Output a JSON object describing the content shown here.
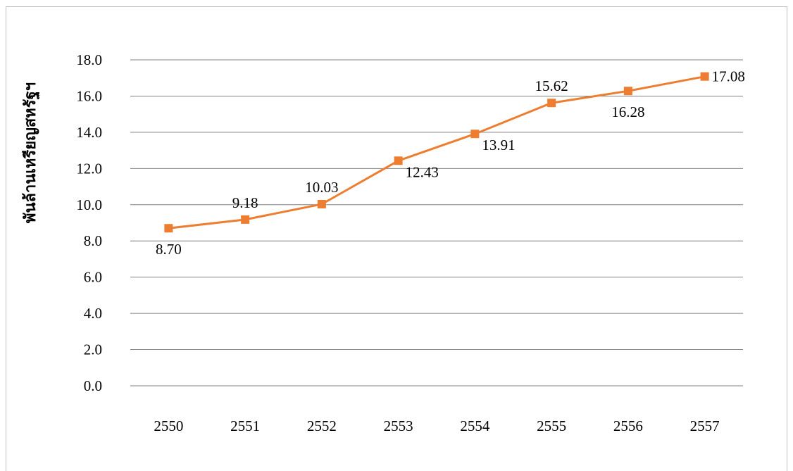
{
  "chart_data": {
    "type": "line",
    "title": "",
    "xlabel": "",
    "ylabel": "พันล้านเหรียญสหรัฐฯ",
    "categories": [
      "2550",
      "2551",
      "2552",
      "2553",
      "2554",
      "2555",
      "2556",
      "2557"
    ],
    "series": [
      {
        "values": [
          8.7,
          9.18,
          10.03,
          12.43,
          13.91,
          15.62,
          16.28,
          17.08
        ],
        "labels": [
          "8.70",
          "9.18",
          "10.03",
          "12.43",
          "13.91",
          "15.62",
          "16.28",
          "17.08"
        ],
        "label_positions": [
          "below",
          "above",
          "above",
          "right",
          "right",
          "above",
          "below",
          "right"
        ]
      }
    ],
    "ylim": [
      0,
      18
    ],
    "yticks": [
      "0.0",
      "2.0",
      "4.0",
      "6.0",
      "8.0",
      "10.0",
      "12.0",
      "14.0",
      "16.0",
      "18.0"
    ],
    "grid": true,
    "legend": "none",
    "line_color": "#ED7D31",
    "gridline_color": "#808080"
  }
}
